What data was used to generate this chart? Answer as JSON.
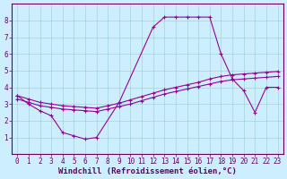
{
  "xlabel": "Windchill (Refroidissement éolien,°C)",
  "bg_color": "#cceeff",
  "line_color": "#990099",
  "grid_color": "#99cccc",
  "xlim": [
    -0.5,
    23.5
  ],
  "ylim": [
    0,
    9
  ],
  "xticks": [
    0,
    1,
    2,
    3,
    4,
    5,
    6,
    7,
    8,
    9,
    10,
    11,
    12,
    13,
    14,
    15,
    16,
    17,
    18,
    19,
    20,
    21,
    22,
    23
  ],
  "yticks": [
    1,
    2,
    3,
    4,
    5,
    6,
    7,
    8
  ],
  "line1_x": [
    0,
    1,
    2,
    3,
    4,
    5,
    6,
    7,
    9,
    12,
    13,
    14,
    15,
    16,
    17,
    18,
    19,
    20,
    21,
    22,
    23
  ],
  "line1_y": [
    3.5,
    3.0,
    2.6,
    2.3,
    1.3,
    1.1,
    0.9,
    1.0,
    3.1,
    7.6,
    8.2,
    8.2,
    8.2,
    8.2,
    8.2,
    6.0,
    4.5,
    3.8,
    2.5,
    4.0,
    4.0
  ],
  "line2_x": [
    0,
    1,
    2,
    3,
    4,
    5,
    6,
    7,
    8,
    9,
    10,
    11,
    12,
    13,
    14,
    15,
    16,
    17,
    18,
    19,
    20,
    21,
    22,
    23
  ],
  "line2_y": [
    3.3,
    3.1,
    2.9,
    2.8,
    2.7,
    2.65,
    2.6,
    2.55,
    2.7,
    2.85,
    3.0,
    3.2,
    3.4,
    3.6,
    3.75,
    3.9,
    4.05,
    4.2,
    4.35,
    4.45,
    4.5,
    4.55,
    4.6,
    4.65
  ],
  "line3_x": [
    0,
    1,
    2,
    3,
    4,
    5,
    6,
    7,
    8,
    9,
    10,
    11,
    12,
    13,
    14,
    15,
    16,
    17,
    18,
    19,
    20,
    21,
    22,
    23
  ],
  "line3_y": [
    3.5,
    3.3,
    3.1,
    3.0,
    2.9,
    2.85,
    2.8,
    2.75,
    2.9,
    3.05,
    3.25,
    3.45,
    3.65,
    3.85,
    4.0,
    4.15,
    4.3,
    4.5,
    4.65,
    4.75,
    4.8,
    4.85,
    4.9,
    4.95
  ],
  "xlabel_fontsize": 6.5,
  "tick_fontsize": 5.5,
  "tick_label_color": "#660066",
  "xlabel_color": "#660066",
  "spine_color": "#660066"
}
